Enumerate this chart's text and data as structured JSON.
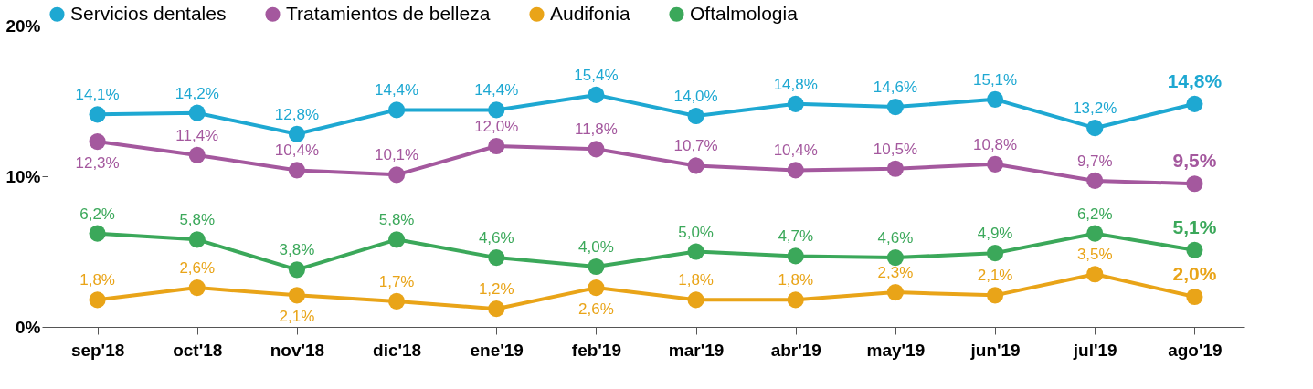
{
  "chart_data": {
    "type": "line",
    "categories": [
      "sep'18",
      "oct'18",
      "nov'18",
      "dic'18",
      "ene'19",
      "feb'19",
      "mar'19",
      "abr'19",
      "may'19",
      "jun'19",
      "jul'19",
      "ago'19"
    ],
    "series": [
      {
        "name": "Servicios dentales",
        "color": "#1ea8d2",
        "values": [
          14.1,
          14.2,
          12.8,
          14.4,
          14.4,
          15.4,
          14.0,
          14.8,
          14.6,
          15.1,
          13.2,
          14.8
        ],
        "value_labels": [
          "14,1%",
          "14,2%",
          "12,8%",
          "14,4%",
          "14,4%",
          "15,4%",
          "14,0%",
          "14,8%",
          "14,6%",
          "15,1%",
          "13,2%",
          "14,8%"
        ]
      },
      {
        "name": "Tratamientos de belleza",
        "color": "#a4589e",
        "values": [
          12.3,
          11.4,
          10.4,
          10.1,
          12.0,
          11.8,
          10.7,
          10.4,
          10.5,
          10.8,
          9.7,
          9.5
        ],
        "value_labels": [
          "12,3%",
          "11,4%",
          "10,4%",
          "10,1%",
          "12,0%",
          "11,8%",
          "10,7%",
          "10,4%",
          "10,5%",
          "10,8%",
          "9,7%",
          "9,5%"
        ]
      },
      {
        "name": "Audifonia",
        "color": "#e9a418",
        "values": [
          1.8,
          2.6,
          2.1,
          1.7,
          1.2,
          2.6,
          1.8,
          1.8,
          2.3,
          2.1,
          3.5,
          2.0
        ],
        "value_labels": [
          "1,8%",
          "2,6%",
          "2,1%",
          "1,7%",
          "1,2%",
          "2,6%",
          "1,8%",
          "1,8%",
          "2,3%",
          "2,1%",
          "3,5%",
          "2,0%"
        ]
      },
      {
        "name": "Oftalmologia",
        "color": "#3ba85a",
        "values": [
          6.2,
          5.8,
          3.8,
          5.8,
          4.6,
          4.0,
          5.0,
          4.7,
          4.6,
          4.9,
          6.2,
          5.1
        ],
        "value_labels": [
          "6,2%",
          "5,8%",
          "3,8%",
          "5,8%",
          "4,6%",
          "4,0%",
          "5,0%",
          "4,7%",
          "4,6%",
          "4,9%",
          "6,2%",
          "5,1%"
        ]
      }
    ],
    "ylim": [
      0,
      20
    ],
    "yticks": [
      {
        "value": 0,
        "label": "0%"
      },
      {
        "value": 10,
        "label": "10%"
      },
      {
        "value": 20,
        "label": "20%"
      }
    ],
    "grid": false,
    "legend": "top",
    "marker": "circle",
    "line_style": "solid"
  }
}
